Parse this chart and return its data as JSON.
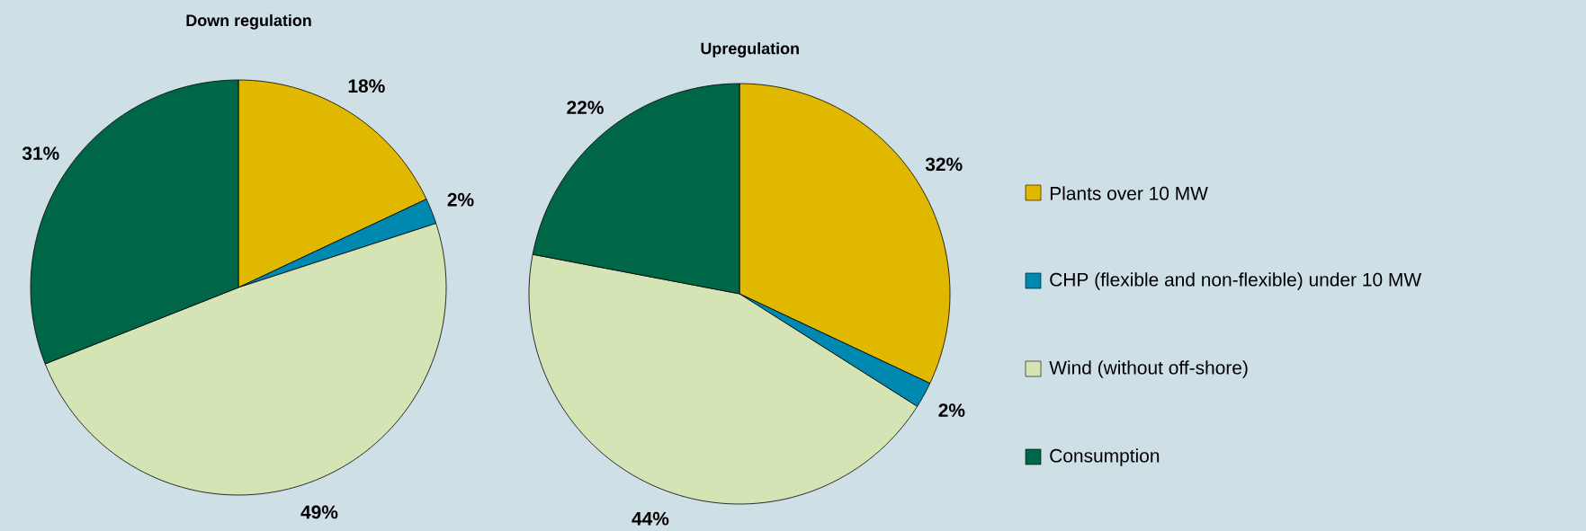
{
  "chart_data": [
    {
      "type": "pie",
      "title": "Down regulation",
      "categories": [
        null,
        null,
        null,
        null
      ],
      "values": [
        18,
        2,
        49,
        31
      ],
      "value_labels": [
        "18%",
        "2%",
        "49%",
        "31%"
      ],
      "colors": [
        "#e0b800",
        "#0089b0",
        "#d4e4b4",
        "#006648"
      ]
    },
    {
      "type": "pie",
      "title": "Upregulation",
      "categories": [
        "Plants over 10 MW",
        "CHP (flexible and non-flexible) under 10 MW",
        "Wind (without off-shore)",
        "Consumption"
      ],
      "values": [
        32,
        2,
        44,
        22
      ],
      "value_labels": [
        "32%",
        "2%",
        "44%",
        "22%"
      ],
      "colors": [
        "#e0b800",
        "#0089b0",
        "#d4e4b4",
        "#006648"
      ],
      "legend": "right"
    }
  ]
}
